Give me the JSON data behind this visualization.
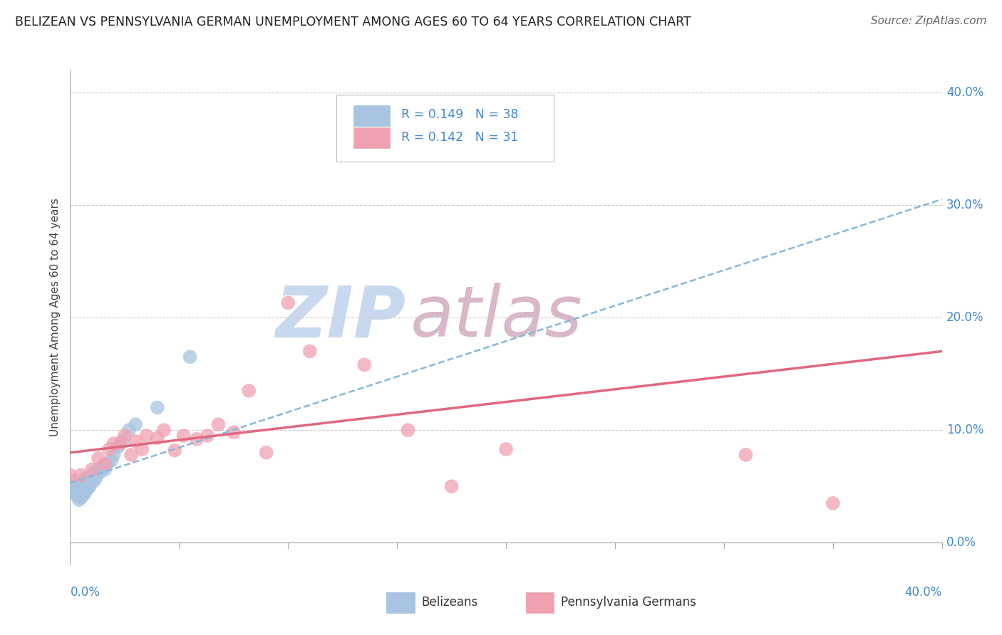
{
  "title": "BELIZEAN VS PENNSYLVANIA GERMAN UNEMPLOYMENT AMONG AGES 60 TO 64 YEARS CORRELATION CHART",
  "source": "Source: ZipAtlas.com",
  "ylabel": "Unemployment Among Ages 60 to 64 years",
  "ytick_labels": [
    "0.0%",
    "10.0%",
    "20.0%",
    "30.0%",
    "40.0%"
  ],
  "ytick_values": [
    0.0,
    0.1,
    0.2,
    0.3,
    0.4
  ],
  "xlim": [
    0.0,
    0.4
  ],
  "ylim": [
    -0.02,
    0.42
  ],
  "belizean_R": 0.149,
  "belizean_N": 38,
  "pennger_R": 0.142,
  "pennger_N": 31,
  "belizean_color": "#a8c4e0",
  "pennger_color": "#f0a0b0",
  "trendline_blue_color": "#88b8d8",
  "trendline_pink_color": "#e06880",
  "grid_color": "#cccccc",
  "watermark_color_zip": "#c8d8ee",
  "watermark_color_atlas": "#d8b8c8",
  "title_color": "#222222",
  "label_color": "#4488cc",
  "belizean_points_x": [
    0.0,
    0.0,
    0.002,
    0.003,
    0.003,
    0.004,
    0.004,
    0.004,
    0.005,
    0.005,
    0.005,
    0.006,
    0.006,
    0.006,
    0.007,
    0.007,
    0.007,
    0.008,
    0.008,
    0.009,
    0.01,
    0.01,
    0.011,
    0.011,
    0.012,
    0.013,
    0.014,
    0.015,
    0.016,
    0.017,
    0.019,
    0.02,
    0.022,
    0.024,
    0.027,
    0.03,
    0.04,
    0.055
  ],
  "belizean_points_y": [
    0.05,
    0.045,
    0.055,
    0.042,
    0.048,
    0.038,
    0.043,
    0.05,
    0.04,
    0.045,
    0.052,
    0.042,
    0.047,
    0.053,
    0.045,
    0.05,
    0.057,
    0.048,
    0.055,
    0.05,
    0.055,
    0.06,
    0.055,
    0.062,
    0.058,
    0.065,
    0.063,
    0.068,
    0.065,
    0.07,
    0.073,
    0.078,
    0.085,
    0.09,
    0.1,
    0.105,
    0.12,
    0.165
  ],
  "pennger_points_x": [
    0.0,
    0.005,
    0.01,
    0.013,
    0.016,
    0.018,
    0.02,
    0.023,
    0.025,
    0.028,
    0.03,
    0.033,
    0.035,
    0.04,
    0.043,
    0.048,
    0.052,
    0.058,
    0.063,
    0.068,
    0.075,
    0.082,
    0.09,
    0.1,
    0.11,
    0.135,
    0.155,
    0.175,
    0.2,
    0.31,
    0.35
  ],
  "pennger_points_y": [
    0.06,
    0.06,
    0.065,
    0.075,
    0.07,
    0.083,
    0.088,
    0.088,
    0.095,
    0.078,
    0.09,
    0.083,
    0.095,
    0.093,
    0.1,
    0.082,
    0.095,
    0.092,
    0.095,
    0.105,
    0.098,
    0.135,
    0.08,
    0.213,
    0.17,
    0.158,
    0.1,
    0.05,
    0.083,
    0.078,
    0.035
  ],
  "blue_trend_x0": 0.0,
  "blue_trend_y0": 0.053,
  "blue_trend_x1": 0.4,
  "blue_trend_y1": 0.305,
  "pink_trend_x0": 0.0,
  "pink_trend_y0": 0.08,
  "pink_trend_x1": 0.4,
  "pink_trend_y1": 0.17
}
